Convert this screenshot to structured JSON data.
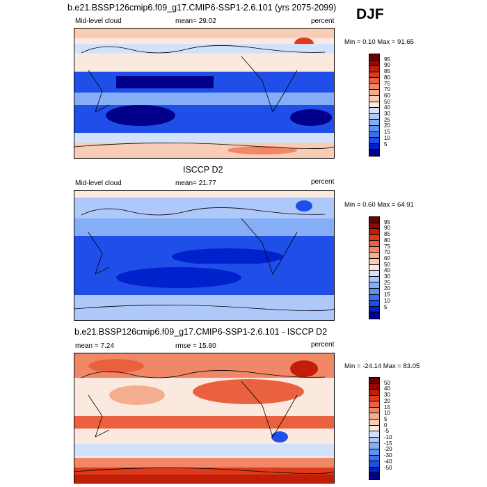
{
  "season": "DJF",
  "colors": {
    "abs_scale": [
      "#00008b",
      "#0022cc",
      "#1f4fe8",
      "#3d6fef",
      "#6090f2",
      "#86aef6",
      "#adc8f9",
      "#d3e2fc",
      "#fbe9df",
      "#f8ccb5",
      "#f4ad8d",
      "#f08868",
      "#ea6140",
      "#dd3b1c",
      "#c11d07",
      "#980800",
      "#6e0000"
    ],
    "diff_scale": [
      "#00008b",
      "#0022cc",
      "#1f4fe8",
      "#3d6fef",
      "#6090f2",
      "#86aef6",
      "#adc8f9",
      "#d3e2fc",
      "#fbe9df",
      "#f8ccb5",
      "#f4ad8d",
      "#f08868",
      "#ea6140",
      "#dd3b1c",
      "#c11d07",
      "#980800",
      "#6e0000"
    ]
  },
  "panels": [
    {
      "title": "b.e21.BSSP126cmip6.f09_g17.CMIP6-SSP1-2.6.101 (yrs 2075-2099)",
      "left_label": "Mid-level cloud",
      "center_label": "mean=  29.02",
      "right_label": "percent",
      "stats": "Min =   0.10 Max =  91.65",
      "colorbar_labels": [
        "95",
        "90",
        "85",
        "80",
        "75",
        "70",
        "60",
        "50",
        "40",
        "30",
        "25",
        "20",
        "15",
        "10",
        "5"
      ]
    },
    {
      "title": "ISCCP D2",
      "left_label": "Mid-level cloud",
      "center_label": "mean=  21.77",
      "right_label": "percent",
      "stats": "Min =   0.60 Max =  64.91",
      "colorbar_labels": [
        "95",
        "90",
        "85",
        "80",
        "75",
        "70",
        "60",
        "50",
        "40",
        "30",
        "25",
        "20",
        "15",
        "10",
        "5"
      ]
    },
    {
      "title": "b.e21.BSSP126cmip6.f09_g17.CMIP6-SSP1-2.6.101 - ISCCP D2",
      "left_label": "mean =   7.24",
      "center_label": "rmse =  15.80",
      "right_label": "percent",
      "stats": "Min = -24.14 Max =  83.05",
      "colorbar_labels": [
        "50",
        "40",
        "30",
        "20",
        "15",
        "10",
        "5",
        "0",
        "-5",
        "-10",
        "-15",
        "-20",
        "-30",
        "-40",
        "-50"
      ]
    }
  ]
}
